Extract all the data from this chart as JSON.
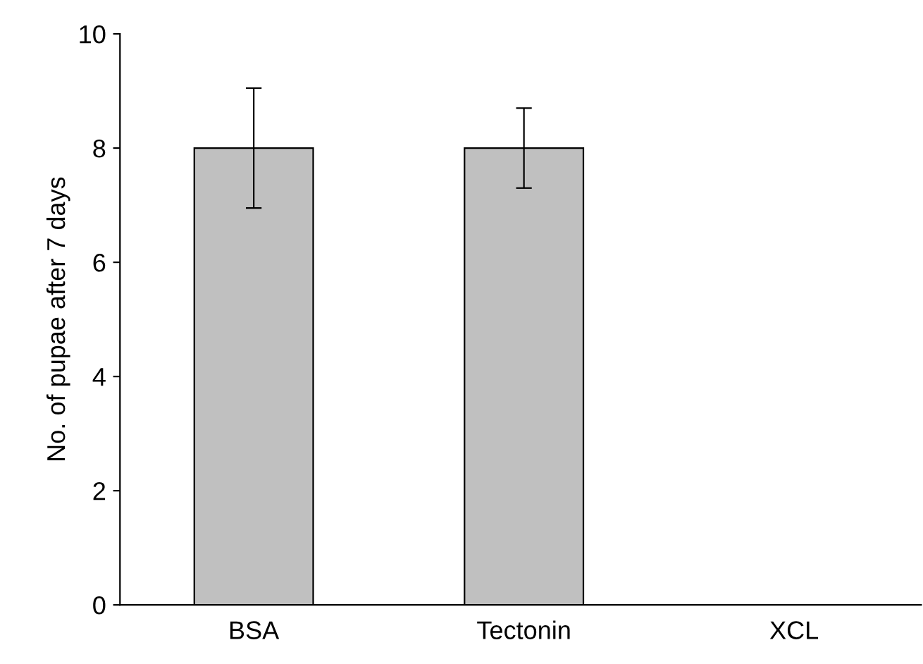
{
  "chart_data": {
    "type": "bar",
    "ylabel": "No. of pupae after 7 days",
    "categories": [
      "BSA",
      "Tectonin",
      "XCL"
    ],
    "values": [
      8,
      8,
      0
    ],
    "errors": [
      1.05,
      0.7,
      null
    ],
    "color": "#c0c0c0",
    "ylim": [
      0,
      10
    ],
    "yticks": [
      0,
      2,
      4,
      6,
      8,
      10
    ],
    "grid": false,
    "legend": false
  }
}
